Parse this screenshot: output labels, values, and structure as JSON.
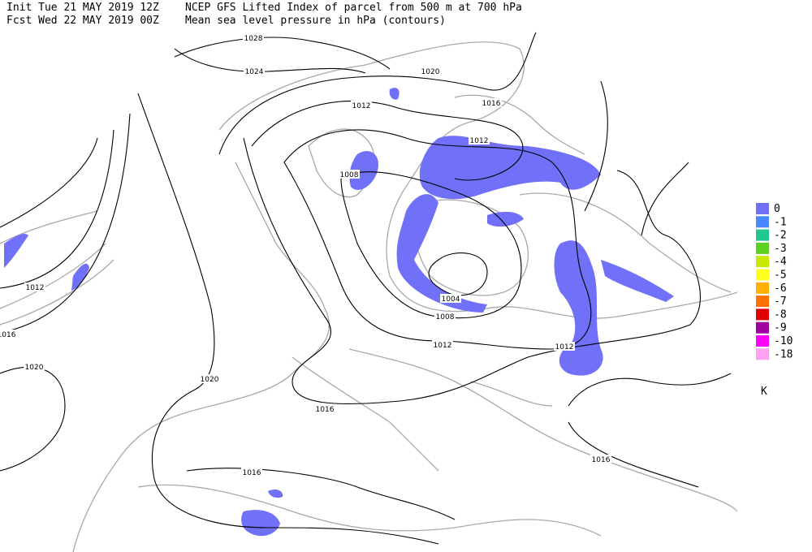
{
  "header": {
    "init": "Init  Tue 21 MAY 2019 12Z",
    "fcst": "Fcst Wed 22 MAY 2019 00Z",
    "title": "NCEP GFS Lifted Index of parcel from 500 m at 700 hPa",
    "subtitle": "Mean sea level pressure in hPa (contours)"
  },
  "contour_labels": [
    "1028",
    "1024",
    "1020",
    "1016",
    "1012",
    "1012",
    "1008",
    "1012",
    "1016",
    "1020",
    "1020",
    "1004",
    "1008",
    "1012",
    "1012",
    "1016",
    "1016",
    "1016"
  ],
  "legend": {
    "items": [
      {
        "label": "0",
        "color": "#7070f8"
      },
      {
        "label": "-1",
        "color": "#4a88ff"
      },
      {
        "label": "-2",
        "color": "#20c890"
      },
      {
        "label": "-3",
        "color": "#60d020"
      },
      {
        "label": "-4",
        "color": "#c8e800"
      },
      {
        "label": "-5",
        "color": "#ffff20"
      },
      {
        "label": "-6",
        "color": "#ffb000"
      },
      {
        "label": "-7",
        "color": "#ff7000"
      },
      {
        "label": "-8",
        "color": "#e00000"
      },
      {
        "label": "-9",
        "color": "#a000a0"
      },
      {
        "label": "-10",
        "color": "#ff00ff"
      },
      {
        "label": "-18",
        "color": "#ffa0f0"
      }
    ],
    "unit": "K"
  }
}
